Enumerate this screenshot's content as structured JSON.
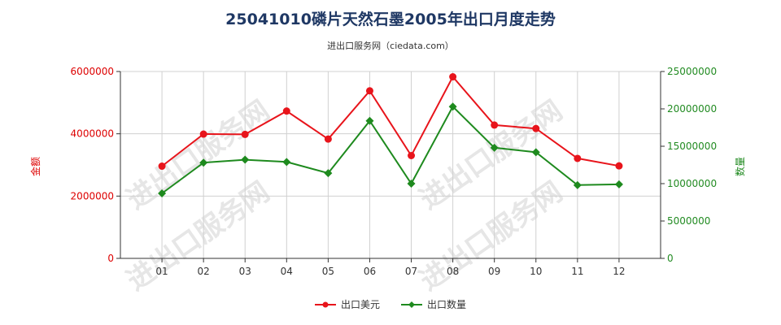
{
  "chart_data": {
    "type": "line",
    "title": "25041010磷片天然石墨2005年出口月度走势",
    "subtitle": "进出口服务网（ciedata.com）",
    "watermark": "进出口服务网",
    "categories": [
      "01",
      "02",
      "03",
      "04",
      "05",
      "06",
      "07",
      "08",
      "09",
      "10",
      "11",
      "12"
    ],
    "y_left": {
      "label": "金额",
      "range": [
        0,
        6000000
      ],
      "ticks": [
        "0",
        "2000000",
        "4000000",
        "6000000"
      ],
      "color": "#dd0000"
    },
    "y_right": {
      "label": "数量",
      "range": [
        0,
        25000000
      ],
      "ticks": [
        "0",
        "5000000",
        "10000000",
        "15000000",
        "20000000",
        "25000000"
      ],
      "color": "#228b22"
    },
    "series": [
      {
        "name": "出口美元",
        "axis": "left",
        "color": "#e8141b",
        "values": [
          2960000,
          3990000,
          3980000,
          4730000,
          3830000,
          5380000,
          3300000,
          5830000,
          4280000,
          4170000,
          3210000,
          2970000
        ]
      },
      {
        "name": "出口数量",
        "axis": "right",
        "color": "#1e8a1e",
        "values": [
          8700000,
          12800000,
          13200000,
          12900000,
          11400000,
          18400000,
          10000000,
          20300000,
          14800000,
          14200000,
          9800000,
          9900000
        ]
      }
    ],
    "grid": true,
    "legend_position": "bottom-center"
  }
}
